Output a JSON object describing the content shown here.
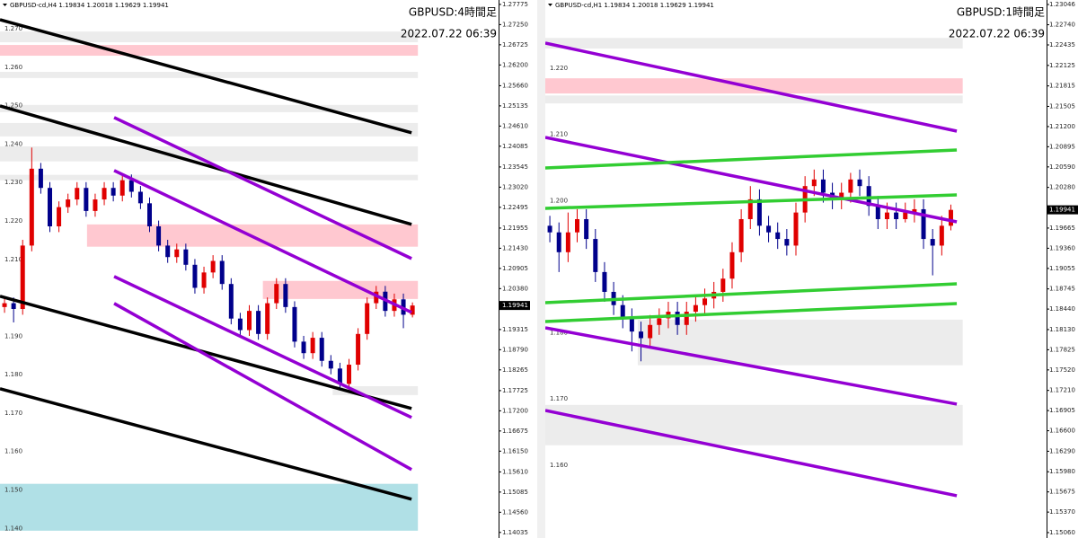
{
  "chart_data": [
    {
      "type": "candlestick",
      "symbol_line": "GBPUSD-cd,H4  1.19834 1.20018 1.19629 1.19941",
      "title": "GBPUSD:4時間足",
      "timestamp": "2022.07.22 06:39",
      "up_color": "#e00000",
      "down_color": "#00008b",
      "xlim": [
        -0.5,
        54.5
      ],
      "ylim": [
        1.1389,
        1.2789
      ],
      "yticks": [
        1.27775,
        {
          "value": 1.2725,
          "label": "1.27250"
        },
        1.26725,
        {
          "value": 1.262,
          "label": "1.26200"
        },
        {
          "value": 1.2566,
          "label": "1.25660"
        },
        1.25135,
        {
          "value": 1.2461,
          "label": "1.24610"
        },
        1.24085,
        1.23545,
        {
          "value": 1.2302,
          "label": "1.23020"
        },
        1.22495,
        1.21955,
        {
          "value": 1.2143,
          "label": "1.21430"
        },
        1.20905,
        {
          "value": 1.2038,
          "label": "1.20380"
        },
        1.19315,
        {
          "value": 1.1879,
          "label": "1.18790"
        },
        1.18265,
        1.17725,
        {
          "value": 1.172,
          "label": "1.17200"
        },
        1.16675,
        {
          "value": 1.1615,
          "label": "1.16150"
        },
        {
          "value": 1.1561,
          "label": "1.15610"
        },
        1.15085,
        {
          "value": 1.1456,
          "label": "1.14560"
        },
        1.14035
      ],
      "current_price": 1.19941,
      "levels": [
        {
          "value": 1.27,
          "label": "1.270"
        },
        {
          "value": 1.26,
          "label": "1.260"
        },
        {
          "value": 1.25,
          "label": "1.250"
        },
        {
          "value": 1.24,
          "label": "1.240"
        },
        {
          "value": 1.23,
          "label": "1.230"
        },
        {
          "value": 1.22,
          "label": "1.220"
        },
        {
          "value": 1.21,
          "label": "1.210"
        },
        {
          "value": 1.19,
          "label": "1.190"
        },
        {
          "value": 1.18,
          "label": "1.180"
        },
        {
          "value": 1.17,
          "label": "1.170"
        },
        {
          "value": 1.16,
          "label": "1.160"
        },
        {
          "value": 1.15,
          "label": "1.150"
        },
        {
          "value": 1.14,
          "label": "1.140"
        }
      ],
      "zones": [
        {
          "low": 1.2679,
          "high": 1.2707,
          "from": -0.5,
          "to": 45.6,
          "color": "#ececec"
        },
        {
          "low": 1.2644,
          "high": 1.2672,
          "from": -0.5,
          "to": 45.6,
          "color": "#ffc8d0"
        },
        {
          "low": 1.2586,
          "high": 1.2602,
          "from": -0.5,
          "to": 45.6,
          "color": "#ececec"
        },
        {
          "low": 1.2497,
          "high": 1.2516,
          "from": -0.5,
          "to": 45.6,
          "color": "#ececec"
        },
        {
          "low": 1.2434,
          "high": 1.2469,
          "from": -0.5,
          "to": 45.6,
          "color": "#ececec"
        },
        {
          "low": 1.2369,
          "high": 1.2408,
          "from": -0.5,
          "to": 45.6,
          "color": "#ececec"
        },
        {
          "low": 1.232,
          "high": 1.2334,
          "from": -0.5,
          "to": 45.6,
          "color": "#ececec"
        },
        {
          "low": 1.2147,
          "high": 1.2205,
          "from": 9.1,
          "to": 45.6,
          "color": "#ffc8d0"
        },
        {
          "low": 1.2011,
          "high": 1.2058,
          "from": 28.5,
          "to": 45.6,
          "color": "#ffc8d0"
        },
        {
          "low": 1.1761,
          "high": 1.1784,
          "from": 36.2,
          "to": 45.6,
          "color": "#ececec"
        },
        {
          "low": 1.1408,
          "high": 1.153,
          "from": -0.5,
          "to": 45.6,
          "color": "#b0e0e6"
        }
      ],
      "trendlines": [
        {
          "points": [
            [
              -0.5,
              1.27378
            ],
            [
              44.9,
              1.24434
            ]
          ],
          "color": "#000000"
        },
        {
          "points": [
            [
              -0.5,
              1.25135
            ],
            [
              44.9,
              1.2205
            ]
          ],
          "color": "#000000"
        },
        {
          "points": [
            [
              -0.5,
              1.20181
            ],
            [
              44.9,
              1.1726
            ]
          ],
          "color": "#000000"
        },
        {
          "points": [
            [
              -0.5,
              1.17774
            ],
            [
              44.9,
              1.149
            ]
          ],
          "color": "#000000"
        },
        {
          "points": [
            [
              12.09,
              1.24831
            ],
            [
              44.9,
              1.21162
            ]
          ],
          "color": "#9400d3"
        },
        {
          "points": [
            [
              12.09,
              1.23452
            ],
            [
              44.9,
              1.1976
            ]
          ],
          "color": "#9400d3"
        },
        {
          "points": [
            [
              12.09,
              1.20695
            ],
            [
              44.9,
              1.17026
            ]
          ],
          "color": "#9400d3"
        },
        {
          "points": [
            [
              12.09,
              1.19994
            ],
            [
              44.9,
              1.15671
            ]
          ],
          "color": "#9400d3"
        }
      ],
      "candles": [
        [
          1.199,
          1.2015,
          1.1975,
          1.2
        ],
        [
          1.2,
          1.2015,
          1.195,
          1.1985
        ],
        [
          1.1985,
          1.2165,
          1.197,
          1.215
        ],
        [
          1.215,
          1.2405,
          1.2135,
          1.235
        ],
        [
          1.235,
          1.2365,
          1.2285,
          1.23
        ],
        [
          1.23,
          1.2315,
          1.2185,
          1.22
        ],
        [
          1.22,
          1.2265,
          1.2185,
          1.225
        ],
        [
          1.225,
          1.2285,
          1.2235,
          1.227
        ],
        [
          1.227,
          1.2315,
          1.2255,
          1.23
        ],
        [
          1.23,
          1.2315,
          1.2225,
          1.224
        ],
        [
          1.224,
          1.2285,
          1.2225,
          1.227
        ],
        [
          1.227,
          1.2315,
          1.2255,
          1.23
        ],
        [
          1.23,
          1.2315,
          1.2265,
          1.228
        ],
        [
          1.228,
          1.2335,
          1.2265,
          1.232
        ],
        [
          1.232,
          1.2335,
          1.2275,
          1.229
        ],
        [
          1.229,
          1.2305,
          1.2245,
          1.226
        ],
        [
          1.226,
          1.2275,
          1.2185,
          1.22
        ],
        [
          1.22,
          1.2215,
          1.2135,
          1.215
        ],
        [
          1.215,
          1.2165,
          1.2105,
          1.212
        ],
        [
          1.212,
          1.2155,
          1.2105,
          1.214
        ],
        [
          1.214,
          1.2155,
          1.2085,
          1.21
        ],
        [
          1.21,
          1.2115,
          1.2025,
          1.204
        ],
        [
          1.204,
          1.2095,
          1.2025,
          1.208
        ],
        [
          1.208,
          1.2125,
          1.2065,
          1.211
        ],
        [
          1.211,
          1.2125,
          1.2035,
          1.205
        ],
        [
          1.205,
          1.2065,
          1.1945,
          1.196
        ],
        [
          1.196,
          1.1975,
          1.1915,
          1.193
        ],
        [
          1.193,
          1.1995,
          1.1915,
          1.198
        ],
        [
          1.198,
          1.1995,
          1.1905,
          1.192
        ],
        [
          1.192,
          1.2015,
          1.1905,
          1.2
        ],
        [
          1.2,
          1.2065,
          1.1985,
          1.205
        ],
        [
          1.205,
          1.2065,
          1.1975,
          1.199
        ],
        [
          1.199,
          1.2005,
          1.1885,
          1.19
        ],
        [
          1.19,
          1.1915,
          1.1855,
          1.187
        ],
        [
          1.187,
          1.1925,
          1.1855,
          1.191
        ],
        [
          1.191,
          1.1925,
          1.1835,
          1.185
        ],
        [
          1.185,
          1.1865,
          1.1815,
          1.183
        ],
        [
          1.183,
          1.1845,
          1.1775,
          1.179
        ],
        [
          1.179,
          1.1855,
          1.1775,
          1.184
        ],
        [
          1.184,
          1.1935,
          1.1825,
          1.192
        ],
        [
          1.192,
          1.2015,
          1.1905,
          1.2
        ],
        [
          1.2,
          1.2045,
          1.1985,
          1.203
        ],
        [
          1.203,
          1.2045,
          1.1965,
          1.198
        ],
        [
          1.198,
          1.2025,
          1.1965,
          1.201
        ],
        [
          1.201,
          1.2025,
          1.1935,
          1.197
        ],
        [
          1.197,
          1.2002,
          1.1963,
          1.1994
        ]
      ]
    },
    {
      "type": "candlestick",
      "symbol_line": "GBPUSD-cd,H1  1.19834 1.20018 1.19629 1.19941",
      "title": "GBPUSD:1時間足",
      "timestamp": "2022.07.22 06:39",
      "up_color": "#e00000",
      "down_color": "#00008b",
      "xlim": [
        -0.5,
        54.5
      ],
      "ylim": [
        1.14978,
        1.23114
      ],
      "yticks": [
        1.23046,
        {
          "value": 1.2274,
          "label": "1.22740"
        },
        1.22435,
        1.22125,
        1.21815,
        1.21505,
        {
          "value": 1.212,
          "label": "1.21200"
        },
        1.20895,
        {
          "value": 1.2059,
          "label": "1.20590"
        },
        {
          "value": 1.2028,
          "label": "1.20280"
        },
        1.19665,
        {
          "value": 1.1936,
          "label": "1.19360"
        },
        1.19055,
        1.18745,
        {
          "value": 1.1844,
          "label": "1.18440"
        },
        {
          "value": 1.1813,
          "label": "1.18130"
        },
        1.17825,
        {
          "value": 1.1752,
          "label": "1.17520"
        },
        {
          "value": 1.1721,
          "label": "1.17210"
        },
        1.16905,
        {
          "value": 1.166,
          "label": "1.16600"
        },
        {
          "value": 1.1629,
          "label": "1.16290"
        },
        {
          "value": 1.1598,
          "label": "1.15980"
        },
        1.15675,
        {
          "value": 1.1537,
          "label": "1.15370"
        },
        {
          "value": 1.1506,
          "label": "1.15060"
        }
      ],
      "current_price": 1.19941,
      "levels": [
        {
          "value": 1.22,
          "label": "1.220"
        },
        {
          "value": 1.21,
          "label": "1.210"
        },
        {
          "value": 1.2,
          "label": "1.200"
        },
        {
          "value": 1.18,
          "label": "1.180"
        },
        {
          "value": 1.17,
          "label": "1.170"
        },
        {
          "value": 1.16,
          "label": "1.160"
        }
      ],
      "zones": [
        {
          "low": 1.2238,
          "high": 1.2254,
          "from": -0.5,
          "to": 45.3,
          "color": "#ececec"
        },
        {
          "low": 1.217,
          "high": 1.2193,
          "from": -0.5,
          "to": 45.3,
          "color": "#ffc8d0"
        },
        {
          "low": 1.2155,
          "high": 1.2167,
          "from": -0.5,
          "to": 45.3,
          "color": "#ececec"
        },
        {
          "low": 1.1759,
          "high": 1.1828,
          "from": 9.65,
          "to": 45.3,
          "color": "#ececec"
        },
        {
          "low": 1.1638,
          "high": 1.1699,
          "from": -0.5,
          "to": 45.3,
          "color": "#ececec"
        }
      ],
      "trendlines": [
        {
          "points": [
            [
              -0.5,
              1.22462
            ],
            [
              44.65,
              1.21131
            ]
          ],
          "color": "#9400d3"
        },
        {
          "points": [
            [
              -0.5,
              1.21036
            ],
            [
              44.65,
              1.19759
            ]
          ],
          "color": "#9400d3"
        },
        {
          "points": [
            [
              -0.5,
              1.18157
            ],
            [
              44.65,
              1.17003
            ]
          ],
          "color": "#9400d3"
        },
        {
          "points": [
            [
              -0.5,
              1.16907
            ],
            [
              44.65,
              1.15617
            ]
          ],
          "color": "#9400d3"
        },
        {
          "points": [
            [
              -0.5,
              1.20574
            ],
            [
              44.65,
              1.20846
            ]
          ],
          "color": "#32cd32"
        },
        {
          "points": [
            [
              -0.5,
              1.19963
            ],
            [
              44.65,
              1.20166
            ]
          ],
          "color": "#32cd32"
        },
        {
          "points": [
            [
              -0.5,
              1.18537
            ],
            [
              44.65,
              1.18822
            ]
          ],
          "color": "#32cd32"
        },
        {
          "points": [
            [
              -0.5,
              1.18252
            ],
            [
              44.65,
              1.18523
            ]
          ],
          "color": "#32cd32"
        }
      ],
      "candles": [
        [
          1.197,
          1.1985,
          1.1945,
          1.196
        ],
        [
          1.196,
          1.1975,
          1.19,
          1.193
        ],
        [
          1.193,
          1.199,
          1.1915,
          1.196
        ],
        [
          1.196,
          1.1995,
          1.1945,
          1.198
        ],
        [
          1.198,
          1.1995,
          1.1935,
          1.195
        ],
        [
          1.195,
          1.1965,
          1.1885,
          1.19
        ],
        [
          1.19,
          1.1915,
          1.1855,
          1.187
        ],
        [
          1.187,
          1.1885,
          1.1835,
          1.185
        ],
        [
          1.185,
          1.1865,
          1.1815,
          1.183
        ],
        [
          1.183,
          1.1845,
          1.178,
          1.181
        ],
        [
          1.181,
          1.1825,
          1.1765,
          1.18
        ],
        [
          1.18,
          1.1835,
          1.1785,
          1.182
        ],
        [
          1.182,
          1.1845,
          1.1805,
          1.183
        ],
        [
          1.183,
          1.1855,
          1.1815,
          1.184
        ],
        [
          1.184,
          1.1855,
          1.1805,
          1.182
        ],
        [
          1.182,
          1.1855,
          1.1805,
          1.184
        ],
        [
          1.184,
          1.1865,
          1.1825,
          1.185
        ],
        [
          1.185,
          1.1875,
          1.1835,
          1.186
        ],
        [
          1.186,
          1.1885,
          1.1845,
          1.187
        ],
        [
          1.187,
          1.1905,
          1.1855,
          1.189
        ],
        [
          1.189,
          1.1945,
          1.1875,
          1.193
        ],
        [
          1.193,
          1.1995,
          1.1915,
          1.198
        ],
        [
          1.198,
          1.203,
          1.1965,
          1.201
        ],
        [
          1.201,
          1.2025,
          1.1955,
          1.197
        ],
        [
          1.197,
          1.1985,
          1.1945,
          1.196
        ],
        [
          1.196,
          1.1975,
          1.1935,
          1.195
        ],
        [
          1.195,
          1.1965,
          1.1925,
          1.194
        ],
        [
          1.194,
          1.2005,
          1.1925,
          1.199
        ],
        [
          1.199,
          1.2045,
          1.1975,
          1.203
        ],
        [
          1.203,
          1.2055,
          1.2015,
          1.204
        ],
        [
          1.204,
          1.2055,
          1.2005,
          1.202
        ],
        [
          1.202,
          1.2035,
          1.1995,
          1.201
        ],
        [
          1.201,
          1.2035,
          1.1995,
          1.202
        ],
        [
          1.202,
          1.205,
          1.2005,
          1.204
        ],
        [
          1.204,
          1.2055,
          1.2015,
          1.203
        ],
        [
          1.203,
          1.2045,
          1.1985,
          1.2
        ],
        [
          1.2,
          1.2015,
          1.1965,
          1.198
        ],
        [
          1.198,
          1.2005,
          1.1965,
          1.199
        ],
        [
          1.199,
          1.2005,
          1.1965,
          1.198
        ],
        [
          1.198,
          1.2005,
          1.1975,
          1.199
        ],
        [
          1.199,
          1.201,
          1.1975,
          1.1995
        ],
        [
          1.1995,
          1.201,
          1.1935,
          1.195
        ],
        [
          1.195,
          1.1965,
          1.1895,
          1.194
        ],
        [
          1.194,
          1.1985,
          1.1925,
          1.197
        ],
        [
          1.197,
          1.2002,
          1.1963,
          1.1994
        ]
      ]
    }
  ]
}
